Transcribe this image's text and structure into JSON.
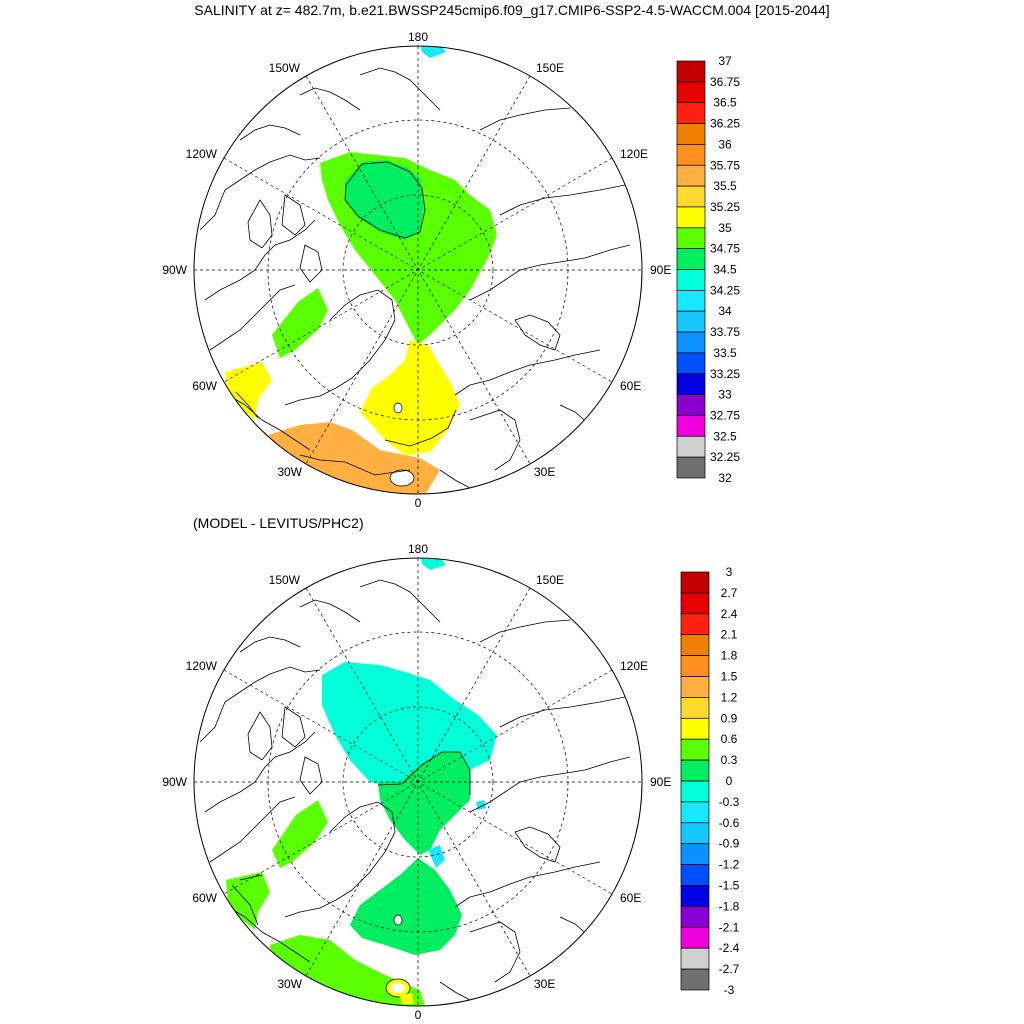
{
  "title": "SALINITY at z= 482.7m, b.e21.BWSSP245cmip6.f09_g17.CMIP6-SSP2-4.5-WACCM.004 [2015-2044]",
  "subtitle": "(MODEL - LEVITUS/PHC2)",
  "longitude_labels": {
    "top": "180",
    "top_left": "150W",
    "top_right": "150E",
    "upper_left": "120W",
    "upper_right": "120E",
    "left": "90W",
    "right": "90E",
    "lower_left": "60W",
    "lower_right": "60E",
    "bottom_left": "30W",
    "bottom_right": "30E",
    "bottom": "0"
  },
  "colorbar_top": {
    "labels": [
      "37",
      "36.75",
      "36.5",
      "36.25",
      "36",
      "35.75",
      "35.5",
      "35.25",
      "35",
      "34.75",
      "34.5",
      "34.25",
      "34",
      "33.75",
      "33.5",
      "33.25",
      "33",
      "32.75",
      "32.5",
      "32.25",
      "32"
    ],
    "colors": [
      "#c40000",
      "#e60000",
      "#ff2010",
      "#f08000",
      "#ff9020",
      "#ffb040",
      "#ffd830",
      "#ffff00",
      "#5aff00",
      "#00ee60",
      "#00ffd8",
      "#18e8ff",
      "#14c8ff",
      "#0a90ff",
      "#0050ff",
      "#0000e0",
      "#8a00d0",
      "#ee00dd",
      "#d0d0d0",
      "#707070"
    ]
  },
  "colorbar_bottom": {
    "labels": [
      "3",
      "2.7",
      "2.4",
      "2.1",
      "1.8",
      "1.5",
      "1.2",
      "0.9",
      "0.6",
      "0.3",
      "0",
      "-0.3",
      "-0.6",
      "-0.9",
      "-1.2",
      "-1.5",
      "-1.8",
      "-2.1",
      "-2.4",
      "-2.7",
      "-3"
    ],
    "colors": [
      "#c40000",
      "#e60000",
      "#ff2010",
      "#f08000",
      "#ff9020",
      "#ffb040",
      "#ffd830",
      "#ffff00",
      "#5aff00",
      "#00ee60",
      "#00ffd8",
      "#18e8ff",
      "#14c8ff",
      "#0a90ff",
      "#0050ff",
      "#0000e0",
      "#8a00d0",
      "#ee00dd",
      "#d0d0d0",
      "#707070"
    ]
  },
  "colors": {
    "green_3475": "#5aff00",
    "green_345": "#00ee60",
    "yellow_3525": "#ffff00",
    "orange_355": "#ffb040",
    "cyan_m03": "#00ffd8",
    "cyan_m06": "#18e8ff"
  }
}
